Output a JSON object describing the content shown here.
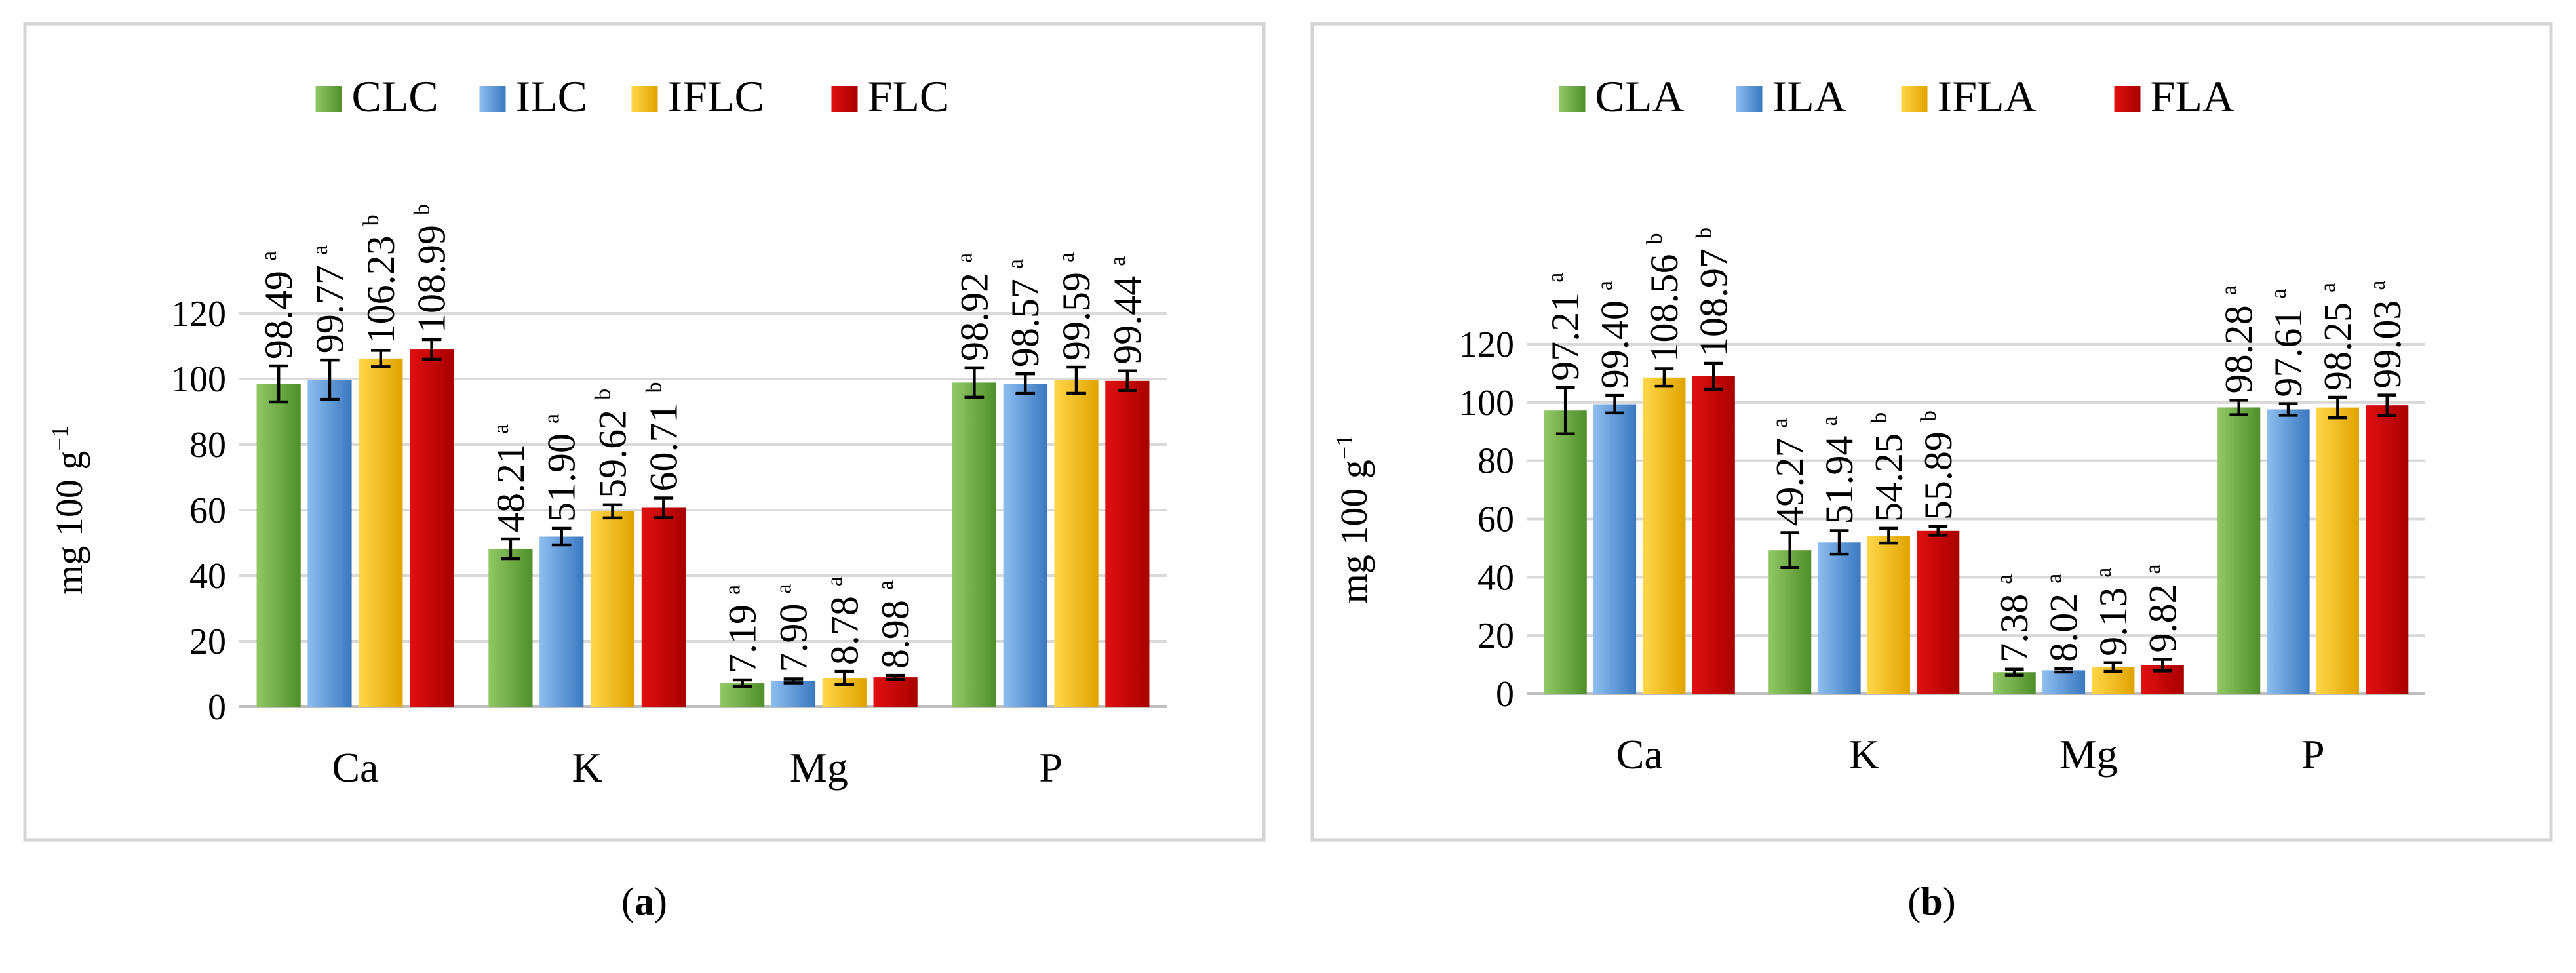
{
  "colors": {
    "green": [
      "#92c866",
      "#4f8f2a"
    ],
    "blue": [
      "#8ebef0",
      "#3a78bf"
    ],
    "yellow": [
      "#ffd74a",
      "#e0a300"
    ],
    "red": [
      "#e01010",
      "#a80000"
    ]
  },
  "chart_data": [
    {
      "type": "bar",
      "panel": "a",
      "panel_label": "(a)",
      "categories": [
        "Ca",
        "K",
        "Mg",
        "P"
      ],
      "ylabel_main": "mg 100 g",
      "ylabel_sup": "−1",
      "ylim": [
        0,
        120
      ],
      "yticks": [
        "0",
        "20",
        "40",
        "60",
        "80",
        "100",
        "120"
      ],
      "legend_position": "top-center",
      "series": [
        {
          "name": "CLC",
          "color": "green",
          "values": [
            98.49,
            48.21,
            7.19,
            98.92
          ],
          "labels": [
            "98.49",
            "48.21",
            "7.19",
            "98.92"
          ],
          "sig": [
            "a",
            "a",
            "a",
            "a"
          ],
          "errors": [
            5.5,
            3.0,
            1.0,
            4.5
          ]
        },
        {
          "name": "ILC",
          "color": "blue",
          "values": [
            99.77,
            51.9,
            7.9,
            98.57
          ],
          "labels": [
            "99.77",
            "51.90",
            "7.90",
            "98.57"
          ],
          "sig": [
            "a",
            "a",
            "a",
            "a"
          ],
          "errors": [
            6.0,
            2.5,
            0.6,
            3.0
          ]
        },
        {
          "name": "IFLC",
          "color": "yellow",
          "values": [
            106.23,
            59.62,
            8.78,
            99.59
          ],
          "labels": [
            "106.23",
            "59.62",
            "8.78",
            "99.59"
          ],
          "sig": [
            "b",
            "b",
            "a",
            "a"
          ],
          "errors": [
            2.5,
            2.0,
            2.0,
            4.0
          ]
        },
        {
          "name": "FLC",
          "color": "red",
          "values": [
            108.99,
            60.71,
            8.98,
            99.44
          ],
          "labels": [
            "108.99",
            "60.71",
            "8.98",
            "99.44"
          ],
          "sig": [
            "b",
            "b",
            "a",
            "a"
          ],
          "errors": [
            3.0,
            3.0,
            0.6,
            3.0
          ]
        }
      ]
    },
    {
      "type": "bar",
      "panel": "b",
      "panel_label": "(b)",
      "categories": [
        "Ca",
        "K",
        "Mg",
        "P"
      ],
      "ylabel_main": "mg 100 g",
      "ylabel_sup": "−1",
      "ylim": [
        0,
        120
      ],
      "yticks": [
        "0",
        "20",
        "40",
        "60",
        "80",
        "100",
        "120"
      ],
      "legend_position": "top-center",
      "series": [
        {
          "name": "CLA",
          "color": "green",
          "values": [
            97.21,
            49.27,
            7.38,
            98.28
          ],
          "labels": [
            "97.21",
            "49.27",
            "7.38",
            "98.28"
          ],
          "sig": [
            "a",
            "a",
            "a",
            "a"
          ],
          "errors": [
            8.0,
            6.0,
            1.0,
            2.5
          ]
        },
        {
          "name": "ILA",
          "color": "blue",
          "values": [
            99.4,
            51.94,
            8.02,
            97.61
          ],
          "labels": [
            "99.40",
            "51.94",
            "8.02",
            "97.61"
          ],
          "sig": [
            "a",
            "a",
            "a",
            "a"
          ],
          "errors": [
            3.0,
            4.0,
            0.6,
            2.0
          ]
        },
        {
          "name": "IFLA",
          "color": "yellow",
          "values": [
            108.56,
            54.25,
            9.13,
            98.25
          ],
          "labels": [
            "108.56",
            "54.25",
            "9.13",
            "98.25"
          ],
          "sig": [
            "b",
            "b",
            "a",
            "a"
          ],
          "errors": [
            3.0,
            2.5,
            1.5,
            3.5
          ]
        },
        {
          "name": "FLA",
          "color": "red",
          "values": [
            108.97,
            55.89,
            9.82,
            99.03
          ],
          "labels": [
            "108.97",
            "55.89",
            "9.82",
            "99.03"
          ],
          "sig": [
            "b",
            "b",
            "a",
            "a"
          ],
          "errors": [
            4.5,
            1.5,
            2.0,
            3.5
          ]
        }
      ]
    }
  ]
}
